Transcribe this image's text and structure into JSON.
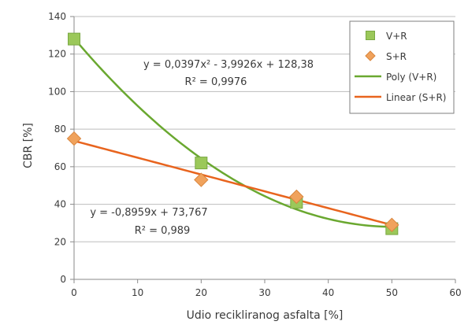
{
  "chart_data": {
    "type": "scatter",
    "xlabel": "Udio recikliranog asfalta [%]",
    "ylabel": "CBR [%]",
    "xlim": [
      0,
      60
    ],
    "ylim": [
      0,
      140
    ],
    "x_ticks": [
      0,
      10,
      20,
      30,
      40,
      50,
      60
    ],
    "y_ticks": [
      0,
      20,
      40,
      60,
      80,
      100,
      120,
      140
    ],
    "grid": "horizontal",
    "legend_position": "top-right",
    "series": [
      {
        "name": "V+R",
        "marker": "square",
        "color": "#9bc85a",
        "x": [
          0,
          20,
          35,
          50
        ],
        "y": [
          128,
          62,
          41,
          27
        ]
      },
      {
        "name": "S+R",
        "marker": "diamond",
        "color": "#f0a25c",
        "x": [
          0,
          20,
          35,
          50
        ],
        "y": [
          75,
          53,
          44,
          29
        ]
      }
    ],
    "trendlines": [
      {
        "name": "Poly (V+R)",
        "kind": "poly2",
        "color": "#6aa830",
        "coefficients": [
          0.0397,
          -3.9926,
          128.38
        ],
        "x_range": [
          0,
          50
        ],
        "equation": "y = 0,0397x² - 3,9926x + 128,38",
        "r2": "R² = 0,9976"
      },
      {
        "name": "Linear (S+R)",
        "kind": "linear",
        "color": "#e8641e",
        "coefficients": [
          -0.8959,
          73.767
        ],
        "x_range": [
          0,
          50
        ],
        "equation": "y = -0,8959x + 73,767",
        "r2": "R² = 0,989"
      }
    ]
  }
}
